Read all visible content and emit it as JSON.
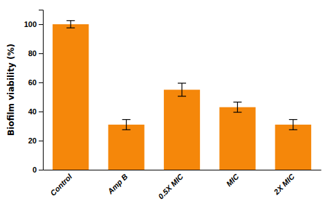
{
  "chart_data": {
    "type": "bar",
    "categories": [
      "Control",
      "Amp B",
      "0.5X MIC",
      "MIC",
      "2X MIC"
    ],
    "values": [
      100,
      31,
      55,
      43,
      31
    ],
    "errors": [
      2.5,
      3.5,
      4.5,
      3.5,
      3.5
    ],
    "color": "#F5870A",
    "ylabel": "Biofilm viability (%)",
    "ylim": [
      0,
      110
    ],
    "yticks": [
      0,
      20,
      40,
      60,
      80,
      100
    ],
    "grid": false
  }
}
